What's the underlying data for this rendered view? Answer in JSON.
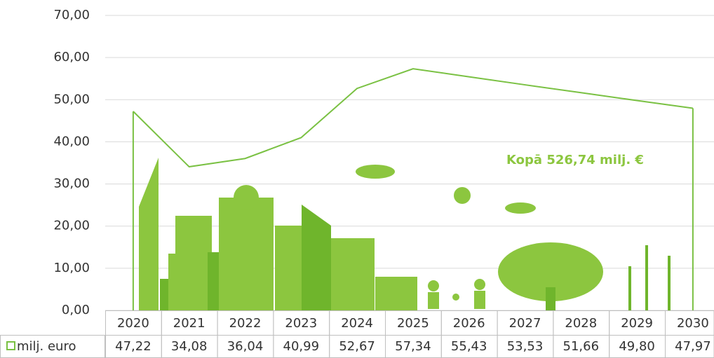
{
  "chart_data": {
    "type": "area",
    "annotation": "Kopā 526,74 milj. €",
    "categories": [
      "2020",
      "2021",
      "2022",
      "2023",
      "2024",
      "2025",
      "2026",
      "2027",
      "2028",
      "2029",
      "2030"
    ],
    "series": [
      {
        "name": "milj. euro",
        "color": "#7ac143",
        "values": [
          47.22,
          34.08,
          36.04,
          40.99,
          52.67,
          57.34,
          55.43,
          53.53,
          51.66,
          49.8,
          47.97
        ],
        "value_labels": [
          "47,22",
          "34,08",
          "36,04",
          "40,99",
          "52,67",
          "57,34",
          "55,43",
          "53,53",
          "51,66",
          "49,80",
          "47,97"
        ]
      }
    ],
    "ylim": [
      0,
      70
    ],
    "yticks": [
      {
        "value": 0,
        "label": "0,00"
      },
      {
        "value": 10,
        "label": "10,00"
      },
      {
        "value": 20,
        "label": "20,00"
      },
      {
        "value": 30,
        "label": "30,00"
      },
      {
        "value": 40,
        "label": "40,00"
      },
      {
        "value": 50,
        "label": "50,00"
      },
      {
        "value": 60,
        "label": "60,00"
      },
      {
        "value": 70,
        "label": "70,00"
      }
    ],
    "grid": true
  }
}
